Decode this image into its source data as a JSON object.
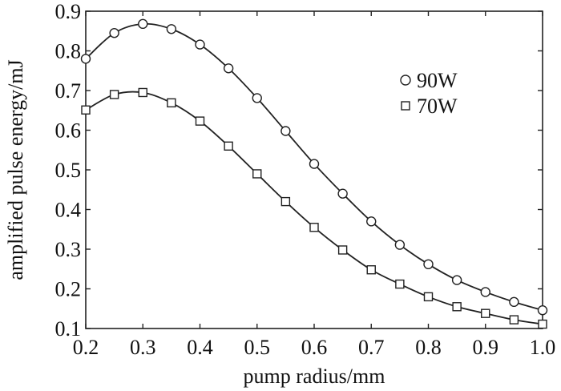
{
  "chart_data": {
    "type": "line",
    "title": "",
    "xlabel": "pump radius/mm",
    "ylabel": "amplified pulse energy/mJ",
    "xlim": [
      0.2,
      1.0
    ],
    "ylim": [
      0.1,
      0.9
    ],
    "grid": false,
    "legend_position": "top-right",
    "x_ticks": [
      "0.2",
      "0.3",
      "0.4",
      "0.5",
      "0.6",
      "0.7",
      "0.8",
      "0.9",
      "1.0"
    ],
    "y_ticks": [
      "0.1",
      "0.2",
      "0.3",
      "0.4",
      "0.5",
      "0.6",
      "0.7",
      "0.8",
      "0.9"
    ],
    "x": [
      0.2,
      0.25,
      0.3,
      0.35,
      0.4,
      0.45,
      0.5,
      0.55,
      0.6,
      0.65,
      0.7,
      0.75,
      0.8,
      0.85,
      0.9,
      0.95,
      1.0
    ],
    "series": [
      {
        "name": "90W",
        "marker": "circle",
        "values": [
          0.78,
          0.845,
          0.868,
          0.855,
          0.816,
          0.756,
          0.681,
          0.598,
          0.515,
          0.44,
          0.37,
          0.311,
          0.262,
          0.222,
          0.192,
          0.167,
          0.146
        ]
      },
      {
        "name": "70W",
        "marker": "square",
        "values": [
          0.651,
          0.69,
          0.695,
          0.669,
          0.623,
          0.56,
          0.49,
          0.42,
          0.355,
          0.298,
          0.248,
          0.212,
          0.18,
          0.155,
          0.138,
          0.122,
          0.111
        ]
      }
    ]
  }
}
